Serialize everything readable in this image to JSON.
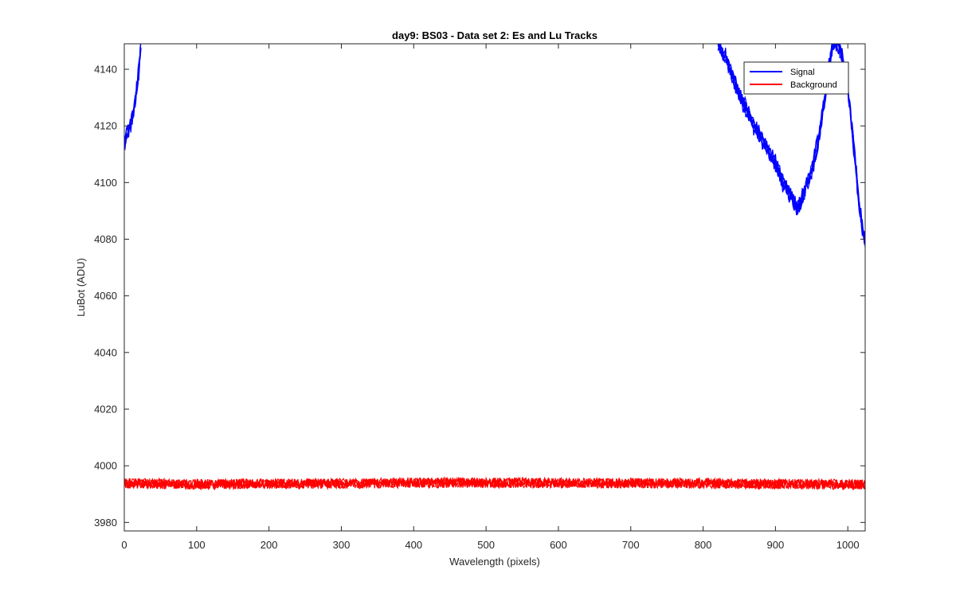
{
  "chart_data": {
    "type": "line",
    "title": "day9: BS03 - Data set 2: Es and Lu Tracks",
    "xlabel": "Wavelength (pixels)",
    "ylabel": "LuBot (ADU)",
    "xlim": [
      0,
      1024
    ],
    "ylim": [
      3977,
      4149
    ],
    "xticks": [
      0,
      100,
      200,
      300,
      400,
      500,
      600,
      700,
      800,
      900,
      1000
    ],
    "yticks": [
      3980,
      4000,
      4020,
      4040,
      4060,
      4080,
      4100,
      4120,
      4140
    ],
    "grid": false,
    "legend_position": "top-right",
    "series": [
      {
        "name": "Signal",
        "color": "#0000ff",
        "x": [
          0,
          5,
          10,
          15,
          20,
          23,
          820,
          830,
          840,
          850,
          860,
          870,
          880,
          890,
          900,
          910,
          920,
          925,
          930,
          935,
          940,
          950,
          960,
          970,
          975,
          980,
          985,
          990,
          1000,
          1010,
          1015,
          1020,
          1024
        ],
        "y": [
          4113,
          4118,
          4121,
          4129,
          4139,
          4149,
          4149,
          4145,
          4138,
          4131,
          4126,
          4120,
          4116,
          4111,
          4107,
          4100,
          4096,
          4093,
          4091,
          4093,
          4097,
          4104,
          4116,
          4133,
          4143,
          4149,
          4149,
          4147,
          4133,
          4108,
          4094,
          4084,
          4079
        ]
      },
      {
        "name": "Background",
        "color": "#ff0000",
        "x": [
          0,
          100,
          200,
          300,
          400,
          500,
          600,
          700,
          800,
          900,
          1000,
          1024
        ],
        "y": [
          3993.8,
          3993.5,
          3993.6,
          3993.7,
          3994.0,
          3994.0,
          3993.9,
          3993.9,
          3993.8,
          3993.6,
          3993.4,
          3993.5
        ]
      }
    ]
  }
}
